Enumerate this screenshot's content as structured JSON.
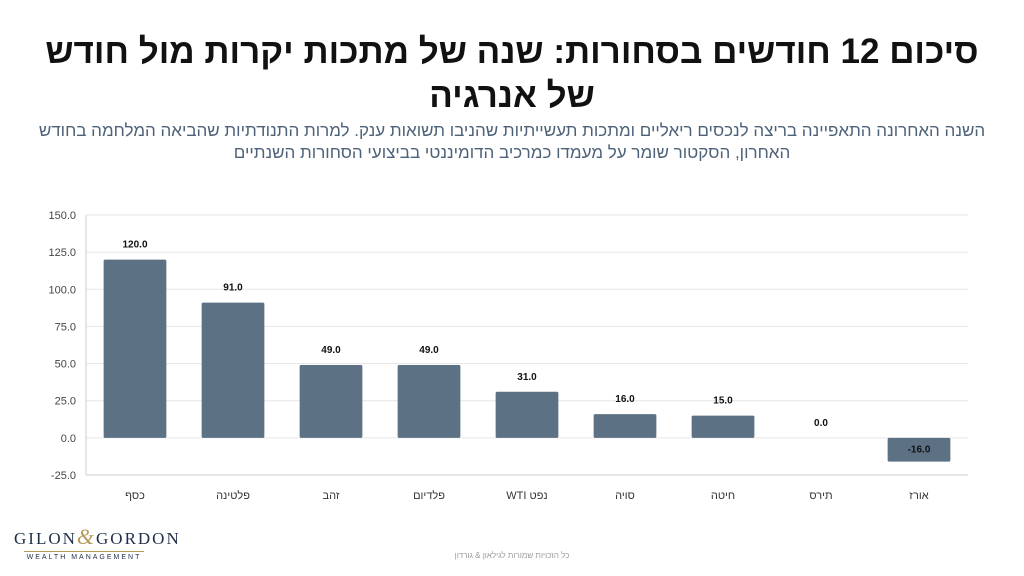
{
  "header": {
    "title": "סיכום 12 חודשים בסחורות: שנה של מתכות יקרות מול חודש של אנרגיה",
    "subtitle": "השנה האחרונה התאפיינה בריצה לנכסים ריאליים ומתכות תעשייתיות שהניבו תשואות ענק. למרות התנודתיות שהביאה המלחמה בחודש האחרון, הסקטור שומר על מעמדו כמרכיב הדומיננטי בביצועי הסחורות השנתיים"
  },
  "chart_data": {
    "type": "bar",
    "title": "",
    "xlabel": "",
    "ylabel": "",
    "categories": [
      "כסף",
      "פלטינה",
      "זהב",
      "פלדיום",
      "WTI נפט",
      "סויה",
      "חיטה",
      "תירס",
      "אורז"
    ],
    "values": [
      120.0,
      91.0,
      49.0,
      49.0,
      31.0,
      16.0,
      15.0,
      0.0,
      -16.0
    ],
    "value_labels": [
      "120.0",
      "91.0",
      "49.0",
      "49.0",
      "31.0",
      "16.0",
      "15.0",
      "0.0",
      "-16.0"
    ],
    "ylim": [
      -25,
      150
    ],
    "yticks": [
      150,
      125,
      100,
      75,
      50,
      25,
      0,
      -25
    ],
    "ytick_labels": [
      "150.0",
      "125.0",
      "100.0",
      "75.0",
      "50.0",
      "25.0",
      "0.0",
      "-25.0"
    ],
    "grid": true,
    "legend": "none",
    "bar_color": "#5d7184",
    "grid_color": "#e6e6e6"
  },
  "logo": {
    "left_word": "GILON",
    "ampersand": "&",
    "right_word": "GORDON",
    "tagline": "WEALTH MANAGEMENT"
  },
  "footer": {
    "text": "כל הזכויות שמורות לגילאון & גורדון"
  }
}
